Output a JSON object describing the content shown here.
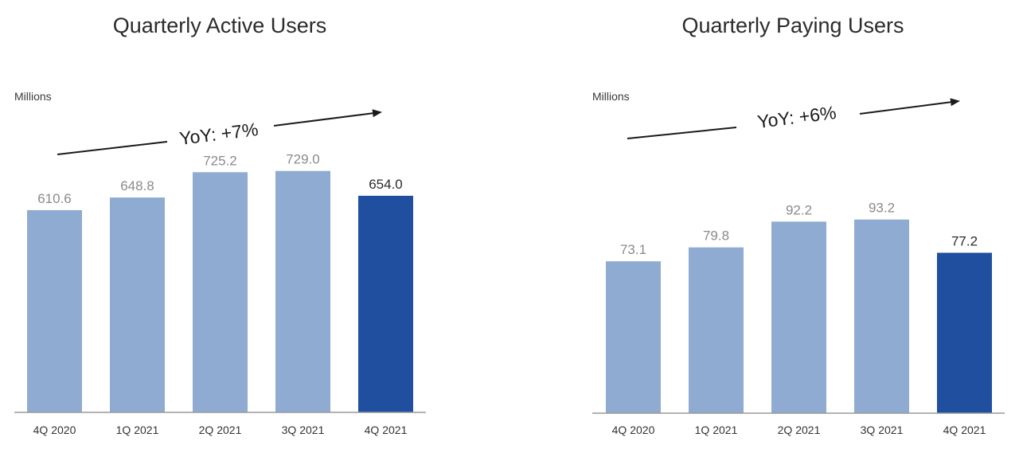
{
  "colors": {
    "bar": "#90abd1",
    "highlight": "#1f4f9e",
    "label": "#8a8a8a",
    "highlight_label": "#2b2b2b",
    "axis": "#999999"
  },
  "chart_data": [
    {
      "type": "bar",
      "title": "Quarterly Active Users",
      "unit_label": "Millions",
      "annotation": "YoY: +7%",
      "categories": [
        "4Q 2020",
        "1Q 2021",
        "2Q 2021",
        "3Q 2021",
        "4Q 2021"
      ],
      "values": [
        610.6,
        648.8,
        725.2,
        729.0,
        654.0
      ],
      "value_labels": [
        "610.6",
        "648.8",
        "725.2",
        "729.0",
        "654.0"
      ],
      "highlight_index": 4,
      "ylabel": "Millions",
      "ylim": [
        0,
        800
      ]
    },
    {
      "type": "bar",
      "title": "Quarterly Paying Users",
      "unit_label": "Millions",
      "annotation": "YoY: +6%",
      "categories": [
        "4Q 2020",
        "1Q 2021",
        "2Q 2021",
        "3Q 2021",
        "4Q 2021"
      ],
      "values": [
        73.1,
        79.8,
        92.2,
        93.2,
        77.2
      ],
      "value_labels": [
        "73.1",
        "79.8",
        "92.2",
        "93.2",
        "77.2"
      ],
      "highlight_index": 4,
      "ylabel": "Millions",
      "ylim": [
        0,
        100
      ]
    }
  ]
}
